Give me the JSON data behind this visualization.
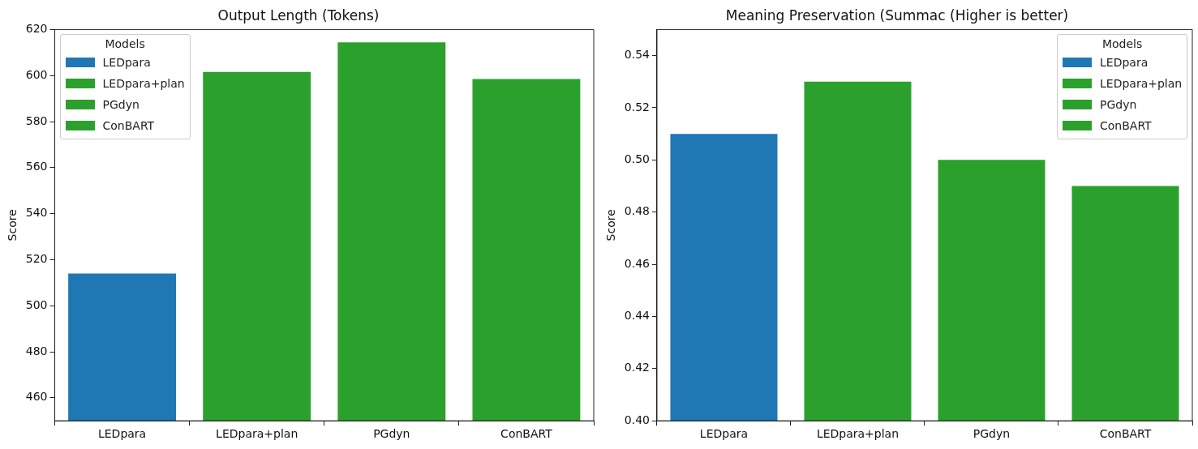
{
  "chart_data": [
    {
      "type": "bar",
      "title": "Output Length (Tokens)",
      "ylabel": "Score",
      "categories": [
        "LEDpara",
        "LEDpara+plan",
        "PGdyn",
        "ConBART"
      ],
      "series": [
        {
          "name": "LEDpara",
          "color": "#1f77b4",
          "values": [
            514,
            null,
            null,
            null
          ]
        },
        {
          "name": "LEDpara+plan",
          "color": "#2ca02c",
          "values": [
            null,
            601.6,
            null,
            null
          ]
        },
        {
          "name": "PGdyn",
          "color": "#2ca02c",
          "values": [
            null,
            null,
            614.4,
            null
          ]
        },
        {
          "name": "ConBART",
          "color": "#2ca02c",
          "values": [
            null,
            null,
            null,
            598.5
          ]
        }
      ],
      "ylim": [
        450,
        620
      ],
      "yticks": [
        460,
        480,
        500,
        520,
        540,
        560,
        580,
        600,
        620
      ],
      "legend": "top left",
      "legend_title": "Models",
      "grid": false
    },
    {
      "type": "bar",
      "title": "Meaning Preservation (Summac (Higher is better)",
      "ylabel": "Score",
      "categories": [
        "LEDpara",
        "LEDpara+plan",
        "PGdyn",
        "ConBART"
      ],
      "series": [
        {
          "name": "LEDpara",
          "color": "#1f77b4",
          "values": [
            0.51,
            null,
            null,
            null
          ]
        },
        {
          "name": "LEDpara+plan",
          "color": "#2ca02c",
          "values": [
            null,
            0.53,
            null,
            null
          ]
        },
        {
          "name": "PGdyn",
          "color": "#2ca02c",
          "values": [
            null,
            null,
            0.5,
            null
          ]
        },
        {
          "name": "ConBART",
          "color": "#2ca02c",
          "values": [
            null,
            null,
            null,
            0.49
          ]
        }
      ],
      "ylim": [
        0.4,
        0.55
      ],
      "yticks": [
        {
          "value": 0.4,
          "label": "0.40"
        },
        {
          "value": 0.42,
          "label": "0.42"
        },
        {
          "value": 0.44,
          "label": "0.44"
        },
        {
          "value": 0.46,
          "label": "0.46"
        },
        {
          "value": 0.48,
          "label": "0.48"
        },
        {
          "value": 0.5,
          "label": "0.50"
        },
        {
          "value": 0.52,
          "label": "0.52"
        },
        {
          "value": 0.54,
          "label": "0.54"
        }
      ],
      "legend": "top right",
      "legend_title": "Models",
      "grid": false
    }
  ]
}
